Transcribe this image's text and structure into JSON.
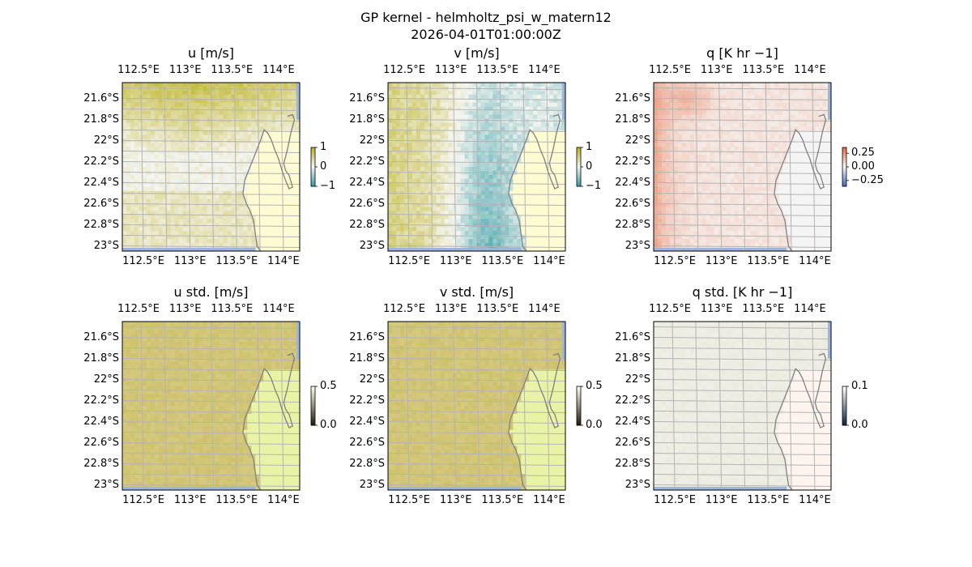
{
  "suptitle": [
    "GP kernel - helmholtz_psi_w_matern12",
    "2026-04-01T01:00:00Z"
  ],
  "chart_data": [
    {
      "type": "heatmap",
      "title": "u [m/s]",
      "field": "u",
      "colormap": "diverging brown-white-teal",
      "lon_ticks": [
        "112.5°E",
        "113°E",
        "113.5°E",
        "114°E"
      ],
      "lat_ticks": [
        "21.6°S",
        "21.8°S",
        "22°S",
        "22.2°S",
        "22.4°S",
        "22.6°S",
        "22.8°S",
        "23°S"
      ],
      "colorbar_ticks": [
        "1",
        "0",
        "−1"
      ],
      "colorbar_range": [
        -1,
        1
      ],
      "pattern": "strong positive (olive) in north, near zero around 22.4°S, weak positive south"
    },
    {
      "type": "heatmap",
      "title": "v [m/s]",
      "field": "v",
      "colormap": "diverging brown-white-teal",
      "lon_ticks": [
        "112.5°E",
        "113°E",
        "113.5°E",
        "114°E"
      ],
      "lat_ticks": [
        "21.6°S",
        "21.8°S",
        "22°S",
        "22.2°S",
        "22.4°S",
        "22.6°S",
        "22.8°S",
        "23°S"
      ],
      "colorbar_ticks": [
        "1",
        "0",
        "−1"
      ],
      "colorbar_range": [
        -1,
        1
      ],
      "pattern": "positive (tan) in west, negative (teal) band near 113.3°E"
    },
    {
      "type": "heatmap",
      "title": "q [K hr −1]",
      "field": "q",
      "colormap": "diverging blue-white-red",
      "lon_ticks": [
        "112.5°E",
        "113°E",
        "113.5°E",
        "114°E"
      ],
      "lat_ticks": [
        "21.6°S",
        "21.8°S",
        "22°S",
        "22.2°S",
        "22.4°S",
        "22.6°S",
        "22.8°S",
        "23°S"
      ],
      "colorbar_ticks": [
        "0.25",
        "0.00",
        "−0.25"
      ],
      "colorbar_range": [
        -0.35,
        0.35
      ],
      "pattern": "weak positive everywhere, stronger along western edge and northwest"
    },
    {
      "type": "heatmap",
      "title": "u std. [m/s]",
      "field": "u_std",
      "colormap": "sequential",
      "lon_ticks": [
        "112.5°E",
        "113°E",
        "113.5°E",
        "114°E"
      ],
      "lat_ticks": [
        "21.6°S",
        "21.8°S",
        "22°S",
        "22.2°S",
        "22.4°S",
        "22.6°S",
        "22.8°S",
        "23°S"
      ],
      "colorbar_ticks": [
        "0.5",
        "0.0"
      ],
      "colorbar_range": [
        0,
        0.5
      ],
      "pattern": "uniform high std over ocean, lower over land"
    },
    {
      "type": "heatmap",
      "title": "v std. [m/s]",
      "field": "v_std",
      "colormap": "sequential",
      "lon_ticks": [
        "112.5°E",
        "113°E",
        "113.5°E",
        "114°E"
      ],
      "lat_ticks": [
        "21.6°S",
        "21.8°S",
        "22°S",
        "22.2°S",
        "22.4°S",
        "22.6°S",
        "22.8°S",
        "23°S"
      ],
      "colorbar_ticks": [
        "0.5",
        "0.0"
      ],
      "colorbar_range": [
        0,
        0.5
      ],
      "pattern": "uniform high std over ocean, lower over land"
    },
    {
      "type": "heatmap",
      "title": "q std. [K hr −1]",
      "field": "q_std",
      "colormap": "sequential",
      "lon_ticks": [
        "112.5°E",
        "113°E",
        "113.5°E",
        "114°E"
      ],
      "lat_ticks": [
        "21.6°S",
        "21.8°S",
        "22°S",
        "22.2°S",
        "22.4°S",
        "22.6°S",
        "22.8°S",
        "23°S"
      ],
      "colorbar_ticks": [
        "0.1",
        "0.0"
      ],
      "colorbar_range": [
        0,
        0.1
      ],
      "pattern": "near-uniform low std"
    }
  ],
  "colors": {
    "land": "#fdfbd2",
    "sea_edge": "#9db4dd",
    "grid": "#b4b4b4",
    "coast": "#808080"
  }
}
